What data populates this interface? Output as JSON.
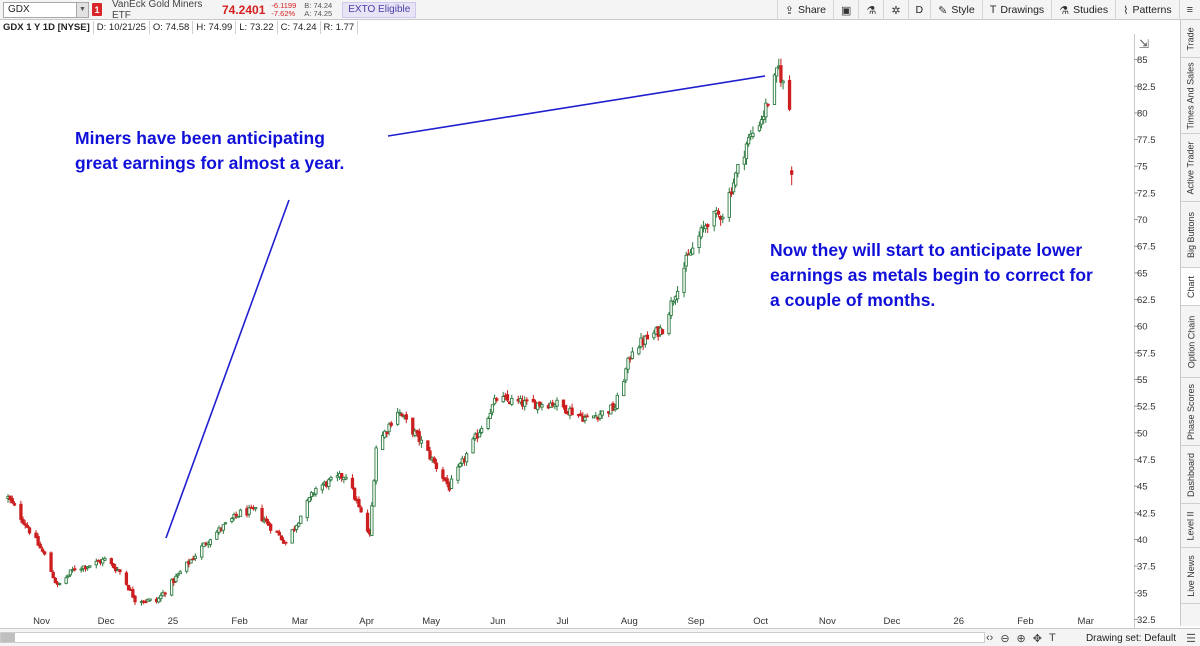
{
  "toolbar": {
    "symbol": "GDX",
    "alert_badge": "1",
    "description": "VanEck Gold Miners ETF",
    "last": "74.2401",
    "net_change": "-6.1199",
    "pct_change": "-7.62%",
    "bid": "B: 74.24",
    "ask": "A: 74.25",
    "exto": "EXTO Eligible",
    "share": "Share",
    "aggregation": "D",
    "style": "Style",
    "drawings": "Drawings",
    "studies": "Studies",
    "patterns": "Patterns"
  },
  "subheader": {
    "title": "GDX 1 Y 1D [NYSE]",
    "date": "D: 10/21/25",
    "open": "O: 74.58",
    "high": "H: 74.99",
    "low": "L: 73.22",
    "close": "C: 74.24",
    "range": "R: 1.77"
  },
  "annotations": {
    "left_line1": "Miners have been anticipating",
    "left_line2": "great earnings for almost a year.",
    "right_line1": "Now they will start to anticipate lower",
    "right_line2": "earnings as metals begin to correct for",
    "right_line3": "a couple of months."
  },
  "sidebar_tabs": [
    "Trade",
    "Times And Sales",
    "Active Trader",
    "Big Buttons",
    "Chart",
    "Option Chain",
    "Phase Scores",
    "Dashboard",
    "Level II",
    "Live News"
  ],
  "status": {
    "drawing_set": "Drawing set: Default"
  },
  "colors": {
    "up": "#2c7a3f",
    "down": "#cc1f1f",
    "annotation": "#1010d8",
    "trendline": "#1f1fd0"
  },
  "chart_data": {
    "type": "candlestick",
    "symbol": "GDX",
    "aggregation": "1 Y 1D",
    "x_ticks": [
      "Nov",
      "Dec",
      "25",
      "Feb",
      "Mar",
      "Apr",
      "May",
      "Jun",
      "Jul",
      "Aug",
      "Sep",
      "Oct",
      "Nov",
      "Dec",
      "26",
      "Feb",
      "Mar"
    ],
    "y_ticks": [
      85,
      82.5,
      80,
      77.5,
      75,
      72.5,
      70,
      67.5,
      65,
      62.5,
      60,
      57.5,
      55,
      52.5,
      50,
      47.5,
      45,
      42.5,
      40,
      37.5,
      35,
      32.5
    ],
    "ylim": [
      31.7,
      87.4
    ],
    "approx_close_path": [
      [
        "2024-10-22",
        43.9
      ],
      [
        "2024-10-31",
        41.2
      ],
      [
        "2024-11-08",
        38.5
      ],
      [
        "2024-11-14",
        35.6
      ],
      [
        "2024-11-22",
        37.3
      ],
      [
        "2024-11-29",
        37.6
      ],
      [
        "2024-12-06",
        38.1
      ],
      [
        "2024-12-13",
        37.0
      ],
      [
        "2024-12-20",
        34.4
      ],
      [
        "2024-12-30",
        34.2
      ],
      [
        "2025-01-10",
        36.9
      ],
      [
        "2025-01-24",
        40.2
      ],
      [
        "2025-02-07",
        42.5
      ],
      [
        "2025-02-14",
        42.7
      ],
      [
        "2025-02-28",
        39.7
      ],
      [
        "2025-03-14",
        44.8
      ],
      [
        "2025-03-28",
        46.1
      ],
      [
        "2025-04-08",
        40.3
      ],
      [
        "2025-04-11",
        48.7
      ],
      [
        "2025-04-21",
        52.1
      ],
      [
        "2025-05-02",
        49.1
      ],
      [
        "2025-05-15",
        44.9
      ],
      [
        "2025-05-30",
        50.6
      ],
      [
        "2025-06-06",
        53.2
      ],
      [
        "2025-06-20",
        52.7
      ],
      [
        "2025-07-03",
        52.8
      ],
      [
        "2025-07-18",
        51.3
      ],
      [
        "2025-07-31",
        52.4
      ],
      [
        "2025-08-08",
        57.9
      ],
      [
        "2025-08-22",
        59.8
      ],
      [
        "2025-09-02",
        66.1
      ],
      [
        "2025-09-12",
        69.9
      ],
      [
        "2025-09-19",
        70.6
      ],
      [
        "2025-09-30",
        77.1
      ],
      [
        "2025-10-08",
        79.9
      ],
      [
        "2025-10-15",
        84.2
      ],
      [
        "2025-10-20",
        80.4
      ],
      [
        "2025-10-21",
        74.24
      ]
    ],
    "last_bar": {
      "date": "2025-10-21",
      "open": 74.58,
      "high": 74.99,
      "low": 73.22,
      "close": 74.24
    }
  }
}
